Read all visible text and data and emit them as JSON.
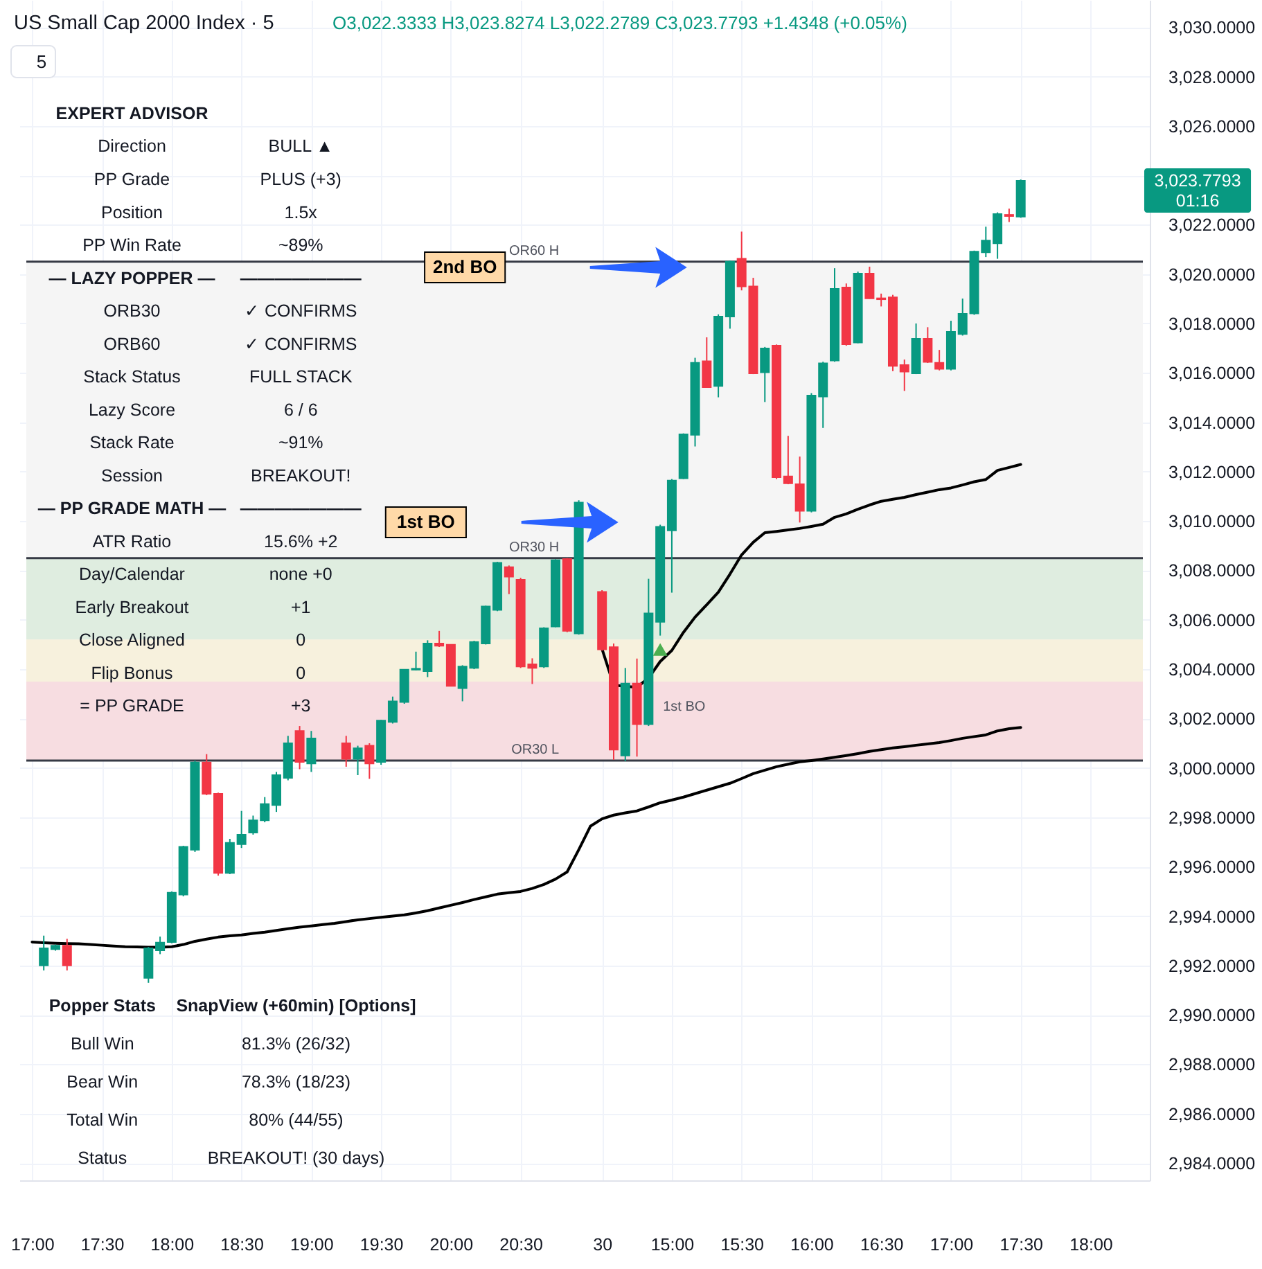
{
  "chart_data": {
    "type": "candlestick",
    "title": "US Small Cap 2000 Index · 5",
    "subtitle": "O3,022.3333 H3,023.8274 L3,022.2789 C3,023.7793 +1.4348 (+0.05%)",
    "categories": [
      "17:00",
      null,
      null,
      null,
      null,
      null,
      "17:30",
      null,
      null,
      null,
      null,
      null,
      "18:00",
      null,
      null,
      null,
      null,
      null,
      "18:30",
      null,
      null,
      null,
      null,
      null,
      "19:00",
      null,
      null,
      null,
      null,
      null,
      "19:30",
      null,
      null,
      null,
      null,
      null,
      "20:00",
      null,
      null,
      null,
      null,
      null,
      "20:30",
      null,
      null,
      null,
      null,
      null,
      null,
      "30",
      null,
      null,
      null,
      null,
      null,
      "15:00",
      null,
      null,
      null,
      null,
      null,
      "15:30",
      null,
      null,
      null,
      null,
      null,
      "16:00",
      null,
      null,
      null,
      null,
      null,
      "16:30",
      null,
      null,
      null,
      null,
      null,
      "17:00",
      null,
      null,
      null,
      null,
      null,
      "17:30",
      null,
      null,
      null,
      null,
      null,
      "18:00",
      null,
      null,
      null,
      null
    ],
    "ohlc": [
      null,
      [
        2992.0,
        2993.21,
        2991.8,
        2992.7
      ],
      [
        2992.66,
        2992.85,
        2992.6,
        2992.8
      ],
      [
        2992.8,
        2993.08,
        2991.8,
        2992.0
      ],
      null,
      null,
      null,
      null,
      null,
      null,
      [
        2991.5,
        2992.75,
        2991.3,
        2992.7
      ],
      [
        2992.61,
        2993.17,
        2992.46,
        2992.93
      ],
      [
        2992.95,
        2995.0,
        2992.9,
        2994.95
      ],
      [
        2994.87,
        2996.85,
        2994.8,
        2996.81
      ],
      [
        2996.69,
        3000.3,
        2996.6,
        3000.22
      ],
      [
        3000.22,
        3000.56,
        2998.9,
        2998.95
      ],
      [
        2998.95,
        2999.0,
        2995.64,
        2995.75
      ],
      [
        2995.75,
        2997.13,
        2995.7,
        2996.97
      ],
      [
        2996.91,
        2998.26,
        2996.76,
        2997.3
      ],
      [
        2997.38,
        2998.07,
        2997.3,
        2997.88
      ],
      [
        2997.88,
        2998.82,
        2997.8,
        2998.54
      ],
      [
        2998.5,
        2999.84,
        2998.22,
        2999.71
      ],
      [
        2999.6,
        3001.3,
        2999.5,
        3001.0
      ],
      [
        3001.5,
        3001.7,
        2999.95,
        3000.24
      ],
      [
        3000.18,
        3001.5,
        2999.84,
        3001.2
      ],
      null,
      null,
      [
        3001.0,
        3001.3,
        3000.05,
        3000.37
      ],
      [
        3000.37,
        3000.9,
        2999.71,
        3000.8
      ],
      [
        3000.9,
        3001.0,
        2999.56,
        3000.18
      ],
      [
        3000.24,
        3001.95,
        3000.13,
        3001.92
      ],
      [
        3001.86,
        3002.89,
        3001.8,
        3002.7
      ],
      [
        3002.67,
        3004.0,
        3002.6,
        3003.98
      ],
      [
        3003.98,
        3004.71,
        3003.96,
        3004.02
      ],
      [
        3003.92,
        3005.17,
        3003.68,
        3005.04
      ],
      [
        3005.04,
        3005.55,
        3004.9,
        3004.95
      ],
      [
        3004.99,
        3005.0,
        3003.3,
        3003.32
      ],
      [
        3003.23,
        3004.16,
        3002.7,
        3004.11
      ],
      [
        3004.05,
        3005.15,
        3004.0,
        3005.1
      ],
      [
        3005.04,
        3006.57,
        3005.0,
        3006.54
      ],
      [
        3006.4,
        3008.35,
        3006.35,
        3008.31
      ],
      [
        3008.13,
        3008.2,
        3007.04,
        3007.75
      ],
      [
        3007.62,
        3007.7,
        3004.05,
        3004.11
      ],
      [
        3004.2,
        3004.44,
        3003.4,
        3004.05
      ],
      [
        3004.11,
        3005.7,
        3004.05,
        3005.66
      ],
      [
        3005.73,
        3008.45,
        3005.7,
        3008.41
      ],
      [
        3008.46,
        3008.5,
        3005.5,
        3005.55
      ],
      [
        3005.45,
        3010.84,
        3005.4,
        3010.75
      ],
      null,
      [
        3007.13,
        3007.2,
        3004.75,
        3004.8
      ],
      [
        3004.89,
        3005.04,
        3000.33,
        3000.74
      ],
      [
        3000.5,
        3004.05,
        3000.27,
        3003.42
      ],
      [
        3003.42,
        3004.43,
        3000.46,
        3001.77
      ],
      [
        3001.77,
        3007.66,
        3001.7,
        3006.26
      ],
      [
        3005.92,
        3009.85,
        3005.36,
        3009.77
      ],
      [
        3009.62,
        3011.7,
        3007.1,
        3011.64
      ],
      [
        3011.73,
        3013.55,
        3011.7,
        3013.51
      ],
      [
        3013.49,
        3016.61,
        3013.02,
        3016.41
      ],
      [
        3016.47,
        3017.44,
        3015.4,
        3015.42
      ],
      [
        3015.47,
        3018.37,
        3015.01,
        3018.28
      ],
      [
        3018.28,
        3020.55,
        3017.79,
        3020.5
      ],
      [
        3020.62,
        3021.72,
        3019.34,
        3019.5
      ],
      [
        3019.5,
        3019.85,
        3015.95,
        3015.98
      ],
      [
        3016.02,
        3017.05,
        3014.82,
        3016.99
      ],
      [
        3017.1,
        3017.15,
        3011.7,
        3011.77
      ],
      [
        3011.81,
        3013.45,
        3011.49,
        3011.53
      ],
      [
        3011.49,
        3012.61,
        3009.94,
        3010.41
      ],
      [
        3010.41,
        3015.18,
        3010.35,
        3015.08
      ],
      [
        3015.04,
        3016.45,
        3013.77,
        3016.39
      ],
      [
        3016.5,
        3020.24,
        3016.45,
        3019.4
      ],
      [
        3019.46,
        3019.62,
        3017.1,
        3017.16
      ],
      [
        3017.23,
        3020.1,
        3017.2,
        3020.02
      ],
      [
        3020.02,
        3020.3,
        3019.0,
        3019.02
      ],
      [
        3019.02,
        3019.21,
        3018.69,
        3018.98
      ],
      [
        3019.06,
        3019.16,
        3016.07,
        3016.28
      ],
      [
        3016.32,
        3016.54,
        3015.27,
        3016.05
      ],
      [
        3015.98,
        3018.0,
        3015.95,
        3017.38
      ],
      [
        3017.38,
        3017.85,
        3016.4,
        3016.44
      ],
      [
        3016.41,
        3016.93,
        3016.1,
        3016.16
      ],
      [
        3016.16,
        3018.11,
        3016.1,
        3017.66
      ],
      [
        3017.57,
        3019.01,
        3017.51,
        3018.39
      ],
      [
        3018.41,
        3020.95,
        3018.35,
        3020.91
      ],
      [
        3020.88,
        3021.92,
        3020.69,
        3021.36
      ],
      [
        3021.25,
        3022.5,
        3020.62,
        3022.43
      ],
      [
        3022.4,
        3022.65,
        3022.11,
        3022.35
      ],
      [
        3022.33,
        3023.83,
        3022.28,
        3023.78
      ],
      null,
      null,
      null,
      null,
      null,
      null,
      null,
      null,
      null,
      null
    ],
    "colors": [
      null,
      "#089981",
      "#089981",
      "#f23645",
      null,
      null,
      null,
      null,
      null,
      null,
      "#089981",
      "#089981",
      "#089981",
      "#089981",
      "#089981",
      "#f23645",
      "#f23645",
      "#089981",
      "#089981",
      "#089981",
      "#089981",
      "#089981",
      "#089981",
      "#f23645",
      "#089981",
      null,
      null,
      "#f23645",
      "#089981",
      "#f23645",
      "#089981",
      "#089981",
      "#089981",
      "#089981",
      "#089981",
      "#f23645",
      "#f23645",
      "#089981",
      "#089981",
      "#089981",
      "#089981",
      "#f23645",
      "#f23645",
      "#f23645",
      "#089981",
      "#089981",
      "#f23645",
      "#089981",
      null,
      "#f23645",
      "#f23645",
      "#089981",
      "#f23645",
      "#089981",
      "#089981",
      "#089981",
      "#089981",
      "#089981",
      "#f23645",
      "#089981",
      "#089981",
      "#f23645",
      "#f23645",
      "#089981",
      "#f23645",
      "#f23645",
      "#f23645",
      "#089981",
      "#089981",
      "#089981",
      "#f23645",
      "#089981",
      "#f23645",
      "#f23645",
      "#f23645",
      "#f23645",
      "#089981",
      "#f23645",
      "#f23645",
      "#089981",
      "#089981",
      "#089981",
      "#089981",
      "#089981",
      "#f23645",
      "#089981",
      null,
      null,
      null,
      null,
      null,
      null,
      null,
      null,
      null,
      null
    ],
    "series": [
      {
        "type": "line",
        "color": "#000000",
        "values": [
          2992.95,
          2992.92,
          2992.9,
          2992.89,
          2992.88,
          2992.85,
          2992.82,
          2992.79,
          2992.76,
          2992.75,
          2992.74,
          2992.74,
          2992.76,
          2992.85,
          2992.98,
          2993.07,
          2993.15,
          2993.2,
          2993.24,
          2993.3,
          2993.35,
          2993.42,
          2993.49,
          2993.55,
          2993.6,
          2993.66,
          2993.71,
          2993.78,
          2993.85,
          2993.9,
          2993.95,
          2994.0,
          2994.05,
          2994.13,
          2994.22,
          2994.33,
          2994.44,
          2994.55,
          2994.67,
          2994.78,
          2994.89,
          2994.95,
          2995.0,
          2995.12,
          2995.28,
          2995.5,
          2995.79,
          2996.69,
          2997.64,
          2997.94,
          2998.09,
          2998.18,
          2998.26,
          2998.42,
          2998.59,
          2998.7,
          2998.82,
          2998.96,
          2999.1,
          2999.24,
          2999.38,
          2999.57,
          2999.77,
          2999.91,
          3000.05,
          3000.15,
          3000.25,
          3000.3,
          3000.36,
          3000.43,
          3000.5,
          3000.58,
          3000.67,
          3000.74,
          3000.81,
          3000.86,
          3000.92,
          3000.97,
          3001.03,
          3001.11,
          3001.2,
          3001.27,
          3001.34,
          3001.5,
          3001.59,
          3001.64,
          null,
          null,
          null,
          null,
          null,
          null,
          null,
          null,
          null,
          null
        ]
      },
      {
        "type": "line",
        "color": "#000000",
        "values": [
          null,
          null,
          null,
          null,
          null,
          null,
          null,
          null,
          null,
          null,
          null,
          null,
          null,
          null,
          null,
          null,
          null,
          null,
          null,
          null,
          null,
          null,
          null,
          null,
          null,
          null,
          null,
          null,
          null,
          null,
          null,
          null,
          null,
          null,
          null,
          null,
          null,
          null,
          null,
          null,
          null,
          null,
          null,
          null,
          null,
          null,
          null,
          null,
          null,
          3004.82,
          3003.36,
          3003.3,
          3003.27,
          3003.64,
          3004.31,
          3004.76,
          3005.49,
          3006.11,
          3006.61,
          3007.12,
          3007.85,
          3008.63,
          3009.14,
          3009.53,
          3009.58,
          3009.64,
          3009.7,
          3009.78,
          3009.87,
          3010.15,
          3010.29,
          3010.48,
          3010.65,
          3010.8,
          3010.88,
          3010.96,
          3011.07,
          3011.17,
          3011.27,
          3011.34,
          3011.46,
          3011.59,
          3011.68,
          3012.05,
          3012.17,
          3012.29,
          null,
          null,
          null,
          null,
          null,
          null,
          null,
          null,
          null,
          null
        ]
      },
      {
        "type": "scatter",
        "marker": "triangle",
        "color": "#4caf50",
        "values": [
          null,
          null,
          null,
          null,
          null,
          null,
          null,
          null,
          null,
          null,
          null,
          null,
          null,
          null,
          null,
          null,
          null,
          null,
          null,
          null,
          null,
          null,
          null,
          null,
          null,
          null,
          null,
          null,
          null,
          null,
          null,
          null,
          null,
          null,
          null,
          null,
          null,
          null,
          null,
          null,
          null,
          null,
          null,
          null,
          null,
          null,
          null,
          null,
          null,
          null,
          null,
          null,
          null,
          null,
          3004.8,
          null,
          null,
          null,
          null,
          null,
          null,
          null,
          null,
          null,
          null,
          null,
          null,
          null,
          null,
          null,
          null,
          null,
          null,
          null,
          null,
          null,
          null,
          null,
          null,
          null,
          null,
          null,
          null,
          null,
          null,
          null,
          null,
          null,
          null,
          null,
          null,
          null,
          null,
          null,
          null,
          null
        ]
      }
    ],
    "ylim": [
      2983.3,
      3031.1
    ],
    "yticks": [
      {
        "value": 2984,
        "label": "2,984.0000"
      },
      {
        "value": 2986,
        "label": "2,986.0000"
      },
      {
        "value": 2988,
        "label": "2,988.0000"
      },
      {
        "value": 2990,
        "label": "2,990.0000"
      },
      {
        "value": 2992,
        "label": "2,992.0000"
      },
      {
        "value": 2994,
        "label": "2,994.0000"
      },
      {
        "value": 2996,
        "label": "2,996.0000"
      },
      {
        "value": 2998,
        "label": "2,998.0000"
      },
      {
        "value": 3000,
        "label": "3,000.0000"
      },
      {
        "value": 3002,
        "label": "3,002.0000"
      },
      {
        "value": 3004,
        "label": "3,004.0000"
      },
      {
        "value": 3006,
        "label": "3,006.0000"
      },
      {
        "value": 3008,
        "label": "3,008.0000"
      },
      {
        "value": 3010,
        "label": "3,010.0000"
      },
      {
        "value": 3012,
        "label": "3,012.0000"
      },
      {
        "value": 3014,
        "label": "3,014.0000"
      },
      {
        "value": 3016,
        "label": "3,016.0000"
      },
      {
        "value": 3018,
        "label": "3,018.0000"
      },
      {
        "value": 3020,
        "label": "3,020.0000"
      },
      {
        "value": 3022,
        "label": "3,022.0000"
      },
      {
        "value": 3024,
        "label": null
      },
      {
        "value": 3026,
        "label": "3,026.0000"
      },
      {
        "value": 3028,
        "label": "3,028.0000"
      },
      {
        "value": 3030,
        "label": "3,030.0000"
      }
    ],
    "grid": true,
    "bands": [
      {
        "axis": "y",
        "from": 3000.3,
        "to": 3020.5,
        "color": "#f5f5f5"
      },
      {
        "axis": "y",
        "from": 3005.2,
        "to": 3008.5,
        "color": "#dfede0"
      },
      {
        "axis": "y",
        "from": 3003.5,
        "to": 3005.2,
        "color": "#f7f1dd"
      },
      {
        "axis": "y",
        "from": 3000.3,
        "to": 3003.5,
        "color": "#f7dde1"
      }
    ],
    "ref_lines": [
      {
        "axis": "y",
        "value": 3020.5,
        "label": "OR60 H",
        "color": "#363a45"
      },
      {
        "axis": "y",
        "value": 3008.5,
        "label": "OR30 H",
        "color": "#363a45"
      },
      {
        "axis": "y",
        "value": 3000.3,
        "label": "OR30 L",
        "color": "#363a45"
      }
    ],
    "annotations": [
      "2nd BO",
      "1st BO",
      "1st BO",
      "3,023.7793",
      "01:16",
      "5",
      "EXPERT ADVISOR",
      "Direction",
      "BULL ▲",
      "PP Grade",
      "PLUS (+3)",
      "Position",
      "1.5x",
      "PP Win Rate",
      "~89%",
      "— LAZY POPPER —",
      "———————",
      "ORB30",
      "✓ CONFIRMS",
      "ORB60",
      "✓ CONFIRMS",
      "Stack Status",
      "FULL STACK",
      "Lazy Score",
      "6 / 6",
      "Stack Rate",
      "~91%",
      "Session",
      "BREAKOUT!",
      "— PP GRADE MATH —",
      "———————",
      "ATR Ratio",
      "15.6% +2",
      "Day/Calendar",
      "none +0",
      "Early Breakout",
      "+1",
      "Close Aligned",
      "0",
      "Flip Bonus",
      "0",
      "= PP GRADE",
      "+3",
      "Popper Stats",
      "SnapView (+60min) [Options]",
      "Bull Win",
      "81.3% (26/32)",
      "Bear Win",
      "78.3% (18/23)",
      "Total Win",
      "80% (44/55)",
      "Status",
      "BREAKOUT! (30 days)"
    ]
  }
}
